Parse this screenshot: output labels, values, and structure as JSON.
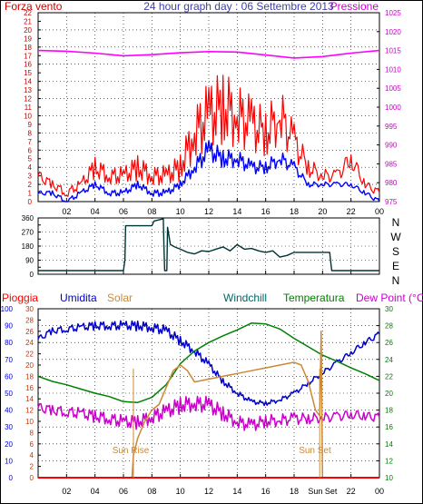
{
  "panel1": {
    "title": "24 hour graph day : 06 Settembre 2013",
    "left_label": "Forza vento",
    "right_label": "Pressione"
  },
  "panel2": {
    "compass_labels": [
      "N",
      "W",
      "S",
      "E",
      "N"
    ]
  },
  "panel3": {
    "legend": [
      {
        "label": "Pioggia",
        "color": "#ff0000"
      },
      {
        "label": "Umidita",
        "color": "#0000cc"
      },
      {
        "label": "Solar",
        "color": "#cc8833"
      },
      {
        "label": "Windchill",
        "color": "#006666"
      },
      {
        "label": "Temperatura",
        "color": "#008000"
      },
      {
        "label": "Dew Point (°C)",
        "color": "#cc00cc"
      }
    ],
    "annotations": [
      {
        "label": "Sun Rise",
        "x_hour": 6.7
      },
      {
        "label": "Sun Set",
        "x_hour": 19.8
      }
    ]
  },
  "chart_data": [
    {
      "type": "line",
      "title": "24 hour graph day : 06 Settembre 2013",
      "x_label": "",
      "x_range": [
        0,
        24
      ],
      "x_ticks": [
        "02",
        "04",
        "06",
        "08",
        "10",
        "12",
        "14",
        "16",
        "18",
        "20",
        "22",
        "00"
      ],
      "y_left_range": [
        0,
        22
      ],
      "y_left_ticks": [
        "0",
        "1",
        "2",
        "3",
        "4",
        "5",
        "6",
        "7",
        "8",
        "9",
        "10",
        "11",
        "12",
        "13",
        "14",
        "15",
        "16",
        "17",
        "18",
        "19",
        "20",
        "21",
        "22"
      ],
      "y_right_range": [
        975,
        1025
      ],
      "y_right_ticks": [
        "975",
        "980",
        "985",
        "990",
        "995",
        "1000",
        "1005",
        "1010",
        "1015",
        "1020",
        "1025"
      ],
      "grid": true,
      "series": [
        {
          "name": "Pressione",
          "color": "#ff00ff",
          "axis": "right",
          "x": [
            0,
            2,
            4,
            6,
            8,
            10,
            12,
            14,
            16,
            18,
            20,
            22,
            24
          ],
          "y": [
            1015.0,
            1014.8,
            1014.3,
            1013.6,
            1013.9,
            1014.4,
            1014.7,
            1014.6,
            1013.8,
            1013.0,
            1013.4,
            1014.3,
            1015.0
          ]
        },
        {
          "name": "Raffica",
          "color": "#ff0000",
          "axis": "left",
          "x": [
            0,
            1,
            2,
            3,
            4,
            5,
            6,
            7,
            8,
            9,
            10,
            11,
            12,
            13,
            14,
            15,
            16,
            17,
            18,
            19,
            20,
            21,
            22,
            23,
            24
          ],
          "y": [
            3,
            2,
            1,
            2,
            4,
            3,
            3,
            4,
            3,
            3,
            4,
            8,
            10,
            11,
            10,
            9,
            8,
            10,
            7,
            4,
            3,
            3,
            5,
            2,
            1
          ]
        },
        {
          "name": "Velocita media",
          "color": "#0000ff",
          "axis": "left",
          "x": [
            0,
            1,
            2,
            3,
            4,
            5,
            6,
            7,
            8,
            9,
            10,
            11,
            12,
            13,
            14,
            15,
            16,
            17,
            18,
            19,
            20,
            21,
            22,
            23,
            24
          ],
          "y": [
            1,
            1,
            0,
            1,
            2,
            1,
            1,
            2,
            1,
            1,
            2,
            4,
            6,
            5,
            5,
            4,
            4,
            5,
            4,
            2,
            2,
            2,
            2,
            1,
            0
          ]
        }
      ]
    },
    {
      "type": "line",
      "title": "",
      "x_range": [
        0,
        24
      ],
      "y_range": [
        0,
        360
      ],
      "y_ticks": [
        "0",
        "45",
        "90",
        "135",
        "180",
        "225",
        "270",
        "315",
        "360"
      ],
      "grid": true,
      "series": [
        {
          "name": "Direzione vento",
          "color": "#003333",
          "x": [
            0,
            6.0,
            6.1,
            6.15,
            8.0,
            8.1,
            8.15,
            8.8,
            8.85,
            8.9,
            9.05,
            9.1,
            9.3,
            9.6,
            10,
            10.5,
            11,
            11.5,
            12,
            12.5,
            13,
            13.5,
            14,
            14.5,
            15,
            15.5,
            16,
            16.5,
            17,
            17.5,
            18,
            18.5,
            19,
            19.5,
            20,
            20.5,
            20.6,
            20.65,
            22,
            24
          ],
          "y": [
            23,
            23,
            90,
            310,
            310,
            330,
            340,
            355,
            180,
            23,
            23,
            300,
            190,
            175,
            160,
            140,
            130,
            150,
            145,
            160,
            175,
            150,
            190,
            160,
            165,
            150,
            140,
            150,
            110,
            120,
            140,
            140,
            140,
            140,
            140,
            140,
            60,
            23,
            23,
            23
          ]
        }
      ]
    },
    {
      "type": "line",
      "title": "",
      "x_range": [
        0,
        24
      ],
      "x_ticks": [
        "02",
        "04",
        "06",
        "08",
        "10",
        "12",
        "14",
        "16",
        "18",
        "Sun Set",
        "22",
        "00"
      ],
      "y_humidity_range": [
        0,
        100
      ],
      "y_humidity_ticks": [
        "0",
        "10",
        "20",
        "30",
        "40",
        "50",
        "60",
        "70",
        "80",
        "90",
        "100"
      ],
      "y_temp_left_range": [
        0,
        30
      ],
      "y_temp_left_ticks": [
        "0",
        "2",
        "4",
        "6",
        "8",
        "10",
        "12",
        "14",
        "16",
        "18",
        "20",
        "22",
        "24",
        "26",
        "28",
        "30"
      ],
      "y_temp_right_range": [
        10,
        30
      ],
      "y_temp_right_ticks": [
        "10",
        "12",
        "14",
        "16",
        "18",
        "20",
        "22",
        "24",
        "26",
        "28",
        "30"
      ],
      "grid": true,
      "series": [
        {
          "name": "Umidita",
          "color": "#0000cc",
          "axis": "humidity",
          "x": [
            0,
            1,
            2,
            3,
            4,
            5,
            6,
            7,
            8,
            9,
            10,
            11,
            12,
            13,
            14,
            15,
            16,
            17,
            18,
            19,
            20,
            21,
            22,
            23,
            24
          ],
          "y": [
            82,
            87,
            88,
            89,
            90,
            90,
            90,
            90,
            89,
            87,
            81,
            75,
            67,
            57,
            50,
            45,
            44,
            46,
            50,
            56,
            62,
            68,
            74,
            80,
            85
          ]
        },
        {
          "name": "Temperatura",
          "color": "#008000",
          "axis": "temp_right",
          "x": [
            0,
            1,
            2,
            3,
            4,
            5,
            6,
            7,
            8,
            9,
            10,
            11,
            12,
            13,
            14,
            15,
            16,
            17,
            18,
            19,
            20,
            21,
            22,
            23,
            24
          ],
          "y": [
            22.0,
            21.4,
            21.0,
            20.5,
            20.0,
            19.6,
            19.0,
            18.9,
            19.5,
            21.0,
            23.5,
            25.0,
            26.0,
            26.8,
            27.5,
            28.3,
            28.2,
            27.6,
            26.5,
            25.5,
            24.5,
            23.8,
            23.0,
            22.3,
            21.5
          ]
        },
        {
          "name": "Dew Point (°C)",
          "color": "#cc00cc",
          "axis": "temp_right",
          "x": [
            0,
            1,
            2,
            3,
            4,
            5,
            6,
            7,
            8,
            9,
            10,
            11,
            12,
            13,
            14,
            15,
            16,
            17,
            18,
            19,
            20,
            21,
            22,
            23,
            24
          ],
          "y": [
            18.3,
            18.0,
            17.8,
            17.6,
            17.3,
            17.0,
            16.6,
            16.6,
            17.2,
            17.8,
            18.6,
            18.8,
            18.6,
            17.6,
            16.6,
            16.2,
            16.7,
            16.8,
            17.0,
            17.0,
            17.1,
            17.2,
            17.5,
            17.3,
            17.1
          ]
        },
        {
          "name": "Solar",
          "color": "#cc8833",
          "axis": "temp_left",
          "x": [
            0,
            6.6,
            6.7,
            7.0,
            7.5,
            8.0,
            8.5,
            9.0,
            9.5,
            10,
            10.5,
            11,
            12,
            13,
            14,
            15,
            16,
            17,
            18,
            18.5,
            19.0,
            19.5,
            19.8,
            19.9,
            20,
            24
          ],
          "y": [
            0,
            0,
            4,
            7,
            10,
            12,
            13,
            16,
            19,
            20,
            19,
            17,
            17.5,
            18,
            18.5,
            19,
            19.5,
            20,
            20.5,
            20,
            17,
            12,
            11,
            26,
            0,
            0
          ]
        },
        {
          "name": "Pioggia",
          "color": "#ff0000",
          "axis": "humidity",
          "x": [
            0,
            24
          ],
          "y": [
            0,
            0
          ]
        }
      ]
    }
  ]
}
